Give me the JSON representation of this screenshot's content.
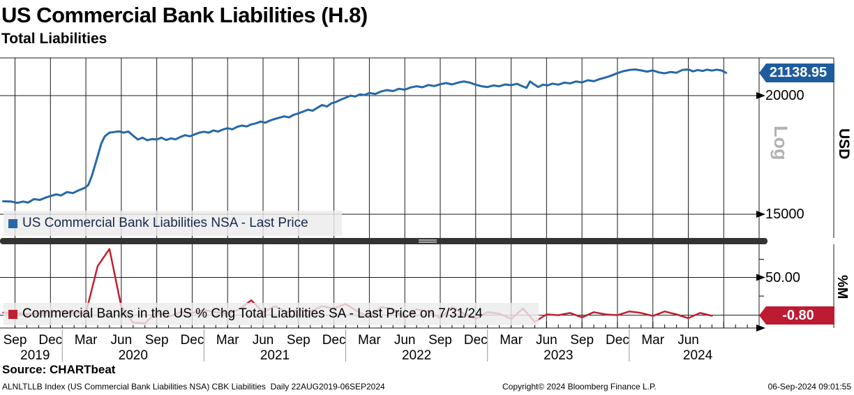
{
  "header": {
    "title": "US Commercial Bank Liabilities (H.8)",
    "subtitle": "Total Liabilities"
  },
  "top_panel": {
    "legend": "US Commercial Bank Liabilities NSA - Last Price",
    "last_price_label": "21138.95",
    "scale_label": "Log",
    "unit_label": "USD",
    "tick_labels": [
      "20000",
      "15000"
    ]
  },
  "bottom_panel": {
    "legend": "Commercial Banks in the US % Chg Total Liabilities SA - Last Price on 7/31/24",
    "last_price_label": "-0.80",
    "unit_label": "%M",
    "tick_labels": [
      "50.00"
    ]
  },
  "footer": {
    "source": "Source: CHARTbeat",
    "meta_left": "ALNLTLLB Index (US Commercial Bank Liabilities NSA) CBK Liabilities  Daily 22AUG2019-06SEP2024",
    "copyright": "Copyright© 2024 Bloomberg Finance L.P.",
    "timestamp": "06-Sep-2024 09:01:55"
  },
  "colors": {
    "blue_line": "#2568a8",
    "blue_badge": "#1e5c9e",
    "red_line": "#c11f32",
    "red_badge": "#bd1b31",
    "grid": "#1a1a1a",
    "year_separator": "#999999",
    "log_label": "#b2b2b2",
    "legend_bg": "#ececec",
    "splitter": "#333333"
  },
  "x_axis": {
    "month_labels": [
      "Sep",
      "Dec",
      "Mar",
      "Jun",
      "Sep",
      "Dec",
      "Mar",
      "Jun",
      "Sep",
      "Dec",
      "Mar",
      "Jun",
      "Sep",
      "Dec",
      "Mar",
      "Jun",
      "Sep",
      "Dec",
      "Mar",
      "Jun"
    ],
    "year_labels": [
      {
        "label": "2019",
        "t": 1.7
      },
      {
        "label": "2020",
        "t": 10
      },
      {
        "label": "2021",
        "t": 22
      },
      {
        "label": "2022",
        "t": 34
      },
      {
        "label": "2023",
        "t": 46
      },
      {
        "label": "2024",
        "t": 57.8
      }
    ],
    "year_separators_t": [
      4,
      16,
      28,
      40,
      52
    ]
  },
  "chart_data": [
    {
      "type": "line",
      "panel": "top",
      "name": "US Commercial Bank Liabilities NSA - Last Price",
      "unit": "USD",
      "y_scale": "log",
      "y_ticks": [
        20000,
        15000
      ],
      "last_price": 21138.95,
      "x_unit": "months since 2019-09-01 (range 22AUG2019-06SEP2024)",
      "series": [
        [
          -1.0,
          15480
        ],
        [
          -0.33,
          15470
        ],
        [
          0.2,
          15420
        ],
        [
          0.7,
          15470
        ],
        [
          1.1,
          15430
        ],
        [
          1.6,
          15560
        ],
        [
          2.1,
          15530
        ],
        [
          2.6,
          15620
        ],
        [
          3.1,
          15690
        ],
        [
          3.5,
          15740
        ],
        [
          3.9,
          15700
        ],
        [
          4.4,
          15830
        ],
        [
          4.9,
          15790
        ],
        [
          5.4,
          15900
        ],
        [
          5.9,
          15990
        ],
        [
          6.2,
          16100
        ],
        [
          6.5,
          16450
        ],
        [
          6.9,
          17100
        ],
        [
          7.3,
          17800
        ],
        [
          7.6,
          18120
        ],
        [
          8.0,
          18280
        ],
        [
          8.4,
          18310
        ],
        [
          8.8,
          18340
        ],
        [
          9.2,
          18280
        ],
        [
          9.6,
          18330
        ],
        [
          10.0,
          18150
        ],
        [
          10.4,
          17980
        ],
        [
          10.8,
          18060
        ],
        [
          11.2,
          17950
        ],
        [
          11.6,
          18000
        ],
        [
          12.0,
          17980
        ],
        [
          12.4,
          18060
        ],
        [
          12.8,
          17960
        ],
        [
          13.2,
          18030
        ],
        [
          13.6,
          17990
        ],
        [
          14.0,
          18090
        ],
        [
          14.4,
          18170
        ],
        [
          14.8,
          18120
        ],
        [
          15.2,
          18200
        ],
        [
          15.6,
          18280
        ],
        [
          16.0,
          18320
        ],
        [
          16.4,
          18280
        ],
        [
          16.8,
          18380
        ],
        [
          17.2,
          18330
        ],
        [
          17.6,
          18420
        ],
        [
          18.0,
          18480
        ],
        [
          18.4,
          18430
        ],
        [
          18.8,
          18540
        ],
        [
          19.2,
          18600
        ],
        [
          19.6,
          18560
        ],
        [
          20.0,
          18650
        ],
        [
          20.4,
          18700
        ],
        [
          20.8,
          18780
        ],
        [
          21.2,
          18730
        ],
        [
          21.6,
          18830
        ],
        [
          22.0,
          18900
        ],
        [
          22.4,
          18960
        ],
        [
          22.8,
          19020
        ],
        [
          23.2,
          18970
        ],
        [
          23.6,
          19090
        ],
        [
          24.0,
          19160
        ],
        [
          24.4,
          19240
        ],
        [
          24.8,
          19330
        ],
        [
          25.2,
          19280
        ],
        [
          25.6,
          19420
        ],
        [
          26.0,
          19550
        ],
        [
          26.4,
          19480
        ],
        [
          26.8,
          19630
        ],
        [
          27.2,
          19700
        ],
        [
          27.6,
          19810
        ],
        [
          28.0,
          19900
        ],
        [
          28.4,
          20000
        ],
        [
          28.8,
          19960
        ],
        [
          29.2,
          20060
        ],
        [
          29.6,
          20030
        ],
        [
          30.0,
          20130
        ],
        [
          30.5,
          20080
        ],
        [
          31.0,
          20200
        ],
        [
          31.5,
          20270
        ],
        [
          32.0,
          20220
        ],
        [
          32.5,
          20330
        ],
        [
          33.0,
          20290
        ],
        [
          33.5,
          20400
        ],
        [
          34.0,
          20460
        ],
        [
          34.5,
          20410
        ],
        [
          35.0,
          20520
        ],
        [
          35.5,
          20470
        ],
        [
          36.0,
          20560
        ],
        [
          36.5,
          20620
        ],
        [
          37.0,
          20550
        ],
        [
          37.5,
          20640
        ],
        [
          38.0,
          20700
        ],
        [
          38.5,
          20640
        ],
        [
          39.0,
          20540
        ],
        [
          39.5,
          20460
        ],
        [
          40.0,
          20420
        ],
        [
          40.5,
          20500
        ],
        [
          41.0,
          20460
        ],
        [
          41.5,
          20550
        ],
        [
          42.0,
          20510
        ],
        [
          42.5,
          20580
        ],
        [
          43.0,
          20450
        ],
        [
          43.3,
          20380
        ],
        [
          43.6,
          20700
        ],
        [
          43.9,
          20570
        ],
        [
          44.3,
          20420
        ],
        [
          44.7,
          20540
        ],
        [
          45.1,
          20500
        ],
        [
          45.5,
          20590
        ],
        [
          46.0,
          20540
        ],
        [
          46.5,
          20640
        ],
        [
          47.0,
          20600
        ],
        [
          47.5,
          20700
        ],
        [
          48.0,
          20650
        ],
        [
          48.5,
          20760
        ],
        [
          49.0,
          20710
        ],
        [
          49.5,
          20820
        ],
        [
          50.0,
          20900
        ],
        [
          50.5,
          21000
        ],
        [
          51.0,
          21120
        ],
        [
          51.5,
          21220
        ],
        [
          52.0,
          21280
        ],
        [
          52.5,
          21310
        ],
        [
          53.0,
          21260
        ],
        [
          53.5,
          21200
        ],
        [
          54.0,
          21260
        ],
        [
          54.5,
          21160
        ],
        [
          55.0,
          21110
        ],
        [
          55.5,
          21180
        ],
        [
          56.0,
          21140
        ],
        [
          56.5,
          21280
        ],
        [
          57.0,
          21310
        ],
        [
          57.4,
          21210
        ],
        [
          57.8,
          21280
        ],
        [
          58.2,
          21230
        ],
        [
          58.6,
          21300
        ],
        [
          59.0,
          21250
        ],
        [
          59.4,
          21300
        ],
        [
          59.8,
          21260
        ],
        [
          60.2,
          21138.95
        ]
      ]
    },
    {
      "type": "line",
      "panel": "bottom",
      "name": "Commercial Banks in the US % Chg Total Liabilities SA",
      "unit": "%M",
      "y_scale": "linear",
      "y_ticks": [
        50.0
      ],
      "last_price": -0.8,
      "last_price_date": "7/31/24",
      "x_unit": "months since 2019-09-01, monthly observations at month end",
      "series": [
        [
          -1.0,
          3.5
        ],
        [
          0,
          2.5
        ],
        [
          1,
          1.5
        ],
        [
          2,
          2.5
        ],
        [
          3,
          3.5
        ],
        [
          4,
          5.5
        ],
        [
          5,
          2.5
        ],
        [
          6,
          3
        ],
        [
          7,
          66
        ],
        [
          8,
          89
        ],
        [
          9,
          11
        ],
        [
          10,
          -10
        ],
        [
          11,
          -11
        ],
        [
          12,
          4
        ],
        [
          13,
          -2
        ],
        [
          14,
          4
        ],
        [
          15,
          3
        ],
        [
          16,
          7
        ],
        [
          17,
          4
        ],
        [
          18,
          2
        ],
        [
          19,
          8
        ],
        [
          20,
          20
        ],
        [
          21,
          4
        ],
        [
          22,
          12
        ],
        [
          23,
          4
        ],
        [
          24,
          7
        ],
        [
          25,
          5
        ],
        [
          26,
          12
        ],
        [
          27,
          9
        ],
        [
          28,
          15
        ],
        [
          29,
          5
        ],
        [
          30,
          -3
        ],
        [
          31,
          11
        ],
        [
          32,
          8
        ],
        [
          33,
          -4
        ],
        [
          34,
          8
        ],
        [
          35,
          5
        ],
        [
          36,
          -4
        ],
        [
          37,
          11
        ],
        [
          38,
          2
        ],
        [
          39,
          -5
        ],
        [
          40,
          4
        ],
        [
          41,
          2
        ],
        [
          42,
          -5
        ],
        [
          43,
          9
        ],
        [
          44,
          -9
        ],
        [
          45,
          1
        ],
        [
          46,
          0
        ],
        [
          47,
          3
        ],
        [
          48,
          -3
        ],
        [
          49,
          4
        ],
        [
          50,
          1
        ],
        [
          51,
          0
        ],
        [
          52,
          5
        ],
        [
          53,
          3
        ],
        [
          54,
          -1
        ],
        [
          55,
          5
        ],
        [
          56,
          1
        ],
        [
          57,
          -4
        ],
        [
          58,
          3
        ],
        [
          59,
          -0.8
        ]
      ]
    }
  ]
}
